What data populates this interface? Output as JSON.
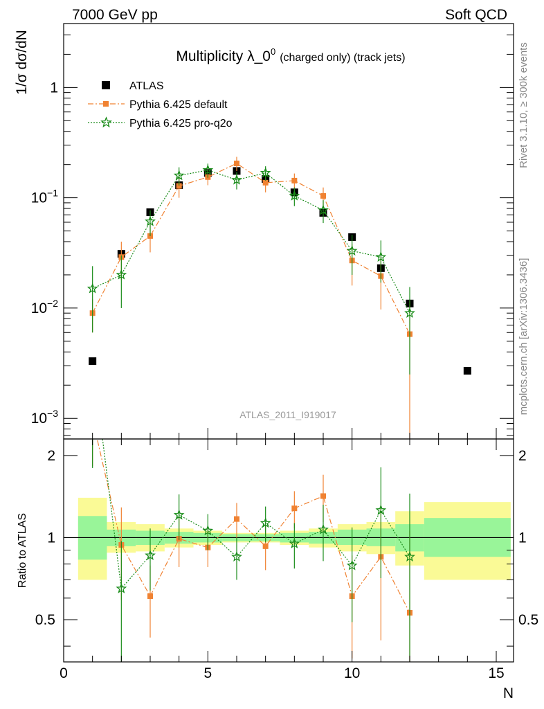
{
  "header": {
    "left": "7000 GeV pp",
    "right": "Soft QCD"
  },
  "side": {
    "rivet": "Rivet 3.1.10, ≥ 300k events",
    "mcplots": "mcplots.cern.ch [arXiv:1306.3436]"
  },
  "chart_data": {
    "type": "scatter",
    "title": "Multiplicity λ_0",
    "title_sup": "0",
    "title_suffix": "(charged only) (track jets)",
    "watermark": "ATLAS_2011_I919017",
    "xlabel": "N",
    "ylabel": "1/σ dσ/dN",
    "ylabel_ratio": "Ratio to ATLAS",
    "xlim": [
      0,
      15.6
    ],
    "ylim": [
      0.00065,
      3.8
    ],
    "ratio_ylim": [
      0.35,
      2.3
    ],
    "yscale": "log",
    "legend_position": "top-left",
    "x_ticks": [
      "0",
      "5",
      "10",
      "15"
    ],
    "y_ticks": [
      {
        "base": "10",
        "exp": "−3",
        "value": 0.001
      },
      {
        "base": "10",
        "exp": "−2",
        "value": 0.01
      },
      {
        "base": "10",
        "exp": "−1",
        "value": 0.1
      },
      {
        "base": "1",
        "exp": "",
        "value": 1
      }
    ],
    "ratio_y_ticks": [
      "0.5",
      "1",
      "2"
    ],
    "ratio_y_tick_values": [
      0.5,
      1,
      2
    ],
    "series": [
      {
        "name": "ATLAS",
        "color": "#000000",
        "marker": "square",
        "x": [
          1,
          2,
          3,
          4,
          5,
          6,
          7,
          8,
          9,
          10,
          11,
          12,
          14
        ],
        "y": [
          0.0033,
          0.031,
          0.074,
          0.13,
          0.168,
          0.175,
          0.148,
          0.112,
          0.073,
          0.044,
          0.023,
          0.011,
          0.0027
        ],
        "err": [
          0.0002,
          0.002,
          0.003,
          0.004,
          0.005,
          0.005,
          0.005,
          0.004,
          0.003,
          0.002,
          0.0015,
          0.001,
          0.0001
        ]
      },
      {
        "name": "Pythia 6.425 default",
        "color": "#f08232",
        "marker": "square-small",
        "line": "dashdot",
        "x": [
          1,
          2,
          3,
          4,
          5,
          6,
          7,
          8,
          9,
          10,
          11,
          12
        ],
        "y": [
          0.009,
          0.029,
          0.045,
          0.128,
          0.154,
          0.205,
          0.137,
          0.143,
          0.104,
          0.027,
          0.0195,
          0.0058
        ],
        "err": [
          0.003,
          0.011,
          0.013,
          0.028,
          0.024,
          0.03,
          0.025,
          0.023,
          0.02,
          0.011,
          0.0098,
          0.0058
        ]
      },
      {
        "name": "Pythia 6.425 pro-q2o",
        "color": "#1a8c1a",
        "marker": "star",
        "line": "dotted",
        "x": [
          1,
          2,
          3,
          4,
          5,
          6,
          7,
          8,
          9,
          10,
          11,
          12
        ],
        "y": [
          0.015,
          0.02,
          0.061,
          0.159,
          0.178,
          0.145,
          0.168,
          0.104,
          0.077,
          0.033,
          0.029,
          0.009
        ],
        "err": [
          0.009,
          0.01,
          0.016,
          0.03,
          0.026,
          0.026,
          0.025,
          0.02,
          0.018,
          0.013,
          0.012,
          0.0065
        ]
      }
    ],
    "ratio_series": [
      {
        "name": "Pythia 6.425 default",
        "x": [
          1,
          2,
          3,
          4,
          5,
          6,
          7,
          8,
          9,
          10,
          11,
          12
        ],
        "y": [
          2.73,
          0.94,
          0.61,
          0.99,
          0.92,
          1.17,
          0.93,
          1.28,
          1.42,
          0.61,
          0.85,
          0.53
        ],
        "err": [
          0.9,
          0.35,
          0.18,
          0.21,
          0.14,
          0.17,
          0.17,
          0.2,
          0.28,
          0.25,
          0.43,
          0.53
        ]
      },
      {
        "name": "Pythia 6.425 pro-q2o",
        "x": [
          1,
          2,
          3,
          4,
          5,
          6,
          7,
          8,
          9,
          10,
          11,
          12
        ],
        "y": [
          4.5,
          0.65,
          0.86,
          1.21,
          1.06,
          0.85,
          1.13,
          0.95,
          1.07,
          0.79,
          1.26,
          0.85
        ],
        "err": [
          2.7,
          0.32,
          0.22,
          0.23,
          0.16,
          0.15,
          0.17,
          0.18,
          0.25,
          0.3,
          0.55,
          0.6
        ]
      }
    ],
    "uncertainty_bands": {
      "inner_color": "#99f599",
      "outer_color": "#fafa96",
      "bins": [
        {
          "x0": 0.5,
          "x1": 1.5,
          "inner": [
            0.83,
            1.2
          ],
          "outer": [
            0.7,
            1.4
          ]
        },
        {
          "x0": 1.5,
          "x1": 2.5,
          "inner": [
            0.93,
            1.07
          ],
          "outer": [
            0.88,
            1.14
          ]
        },
        {
          "x0": 2.5,
          "x1": 3.5,
          "inner": [
            0.94,
            1.06
          ],
          "outer": [
            0.89,
            1.12
          ]
        },
        {
          "x0": 3.5,
          "x1": 4.5,
          "inner": [
            0.95,
            1.05
          ],
          "outer": [
            0.92,
            1.08
          ]
        },
        {
          "x0": 4.5,
          "x1": 5.5,
          "inner": [
            0.96,
            1.04
          ],
          "outer": [
            0.94,
            1.06
          ]
        },
        {
          "x0": 5.5,
          "x1": 6.5,
          "inner": [
            0.97,
            1.03
          ],
          "outer": [
            0.96,
            1.04
          ]
        },
        {
          "x0": 6.5,
          "x1": 7.5,
          "inner": [
            0.97,
            1.03
          ],
          "outer": [
            0.96,
            1.04
          ]
        },
        {
          "x0": 7.5,
          "x1": 8.5,
          "inner": [
            0.96,
            1.04
          ],
          "outer": [
            0.94,
            1.06
          ]
        },
        {
          "x0": 8.5,
          "x1": 9.5,
          "inner": [
            0.95,
            1.05
          ],
          "outer": [
            0.92,
            1.08
          ]
        },
        {
          "x0": 9.5,
          "x1": 10.5,
          "inner": [
            0.94,
            1.07
          ],
          "outer": [
            0.89,
            1.12
          ]
        },
        {
          "x0": 10.5,
          "x1": 11.5,
          "inner": [
            0.93,
            1.08
          ],
          "outer": [
            0.87,
            1.14
          ]
        },
        {
          "x0": 11.5,
          "x1": 12.5,
          "inner": [
            0.89,
            1.12
          ],
          "outer": [
            0.79,
            1.25
          ]
        },
        {
          "x0": 12.5,
          "x1": 15.5,
          "inner": [
            0.85,
            1.18
          ],
          "outer": [
            0.7,
            1.35
          ]
        }
      ]
    }
  }
}
